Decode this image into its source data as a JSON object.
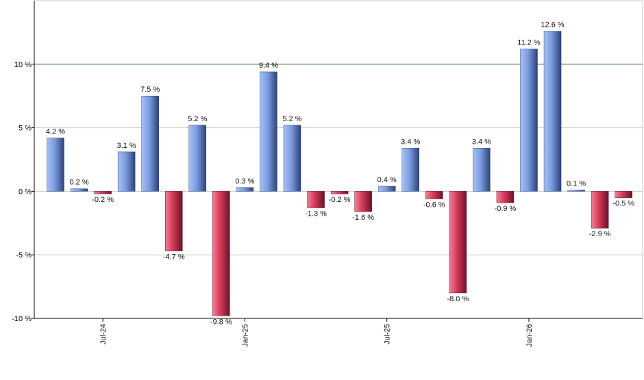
{
  "chart_data": {
    "type": "bar",
    "title": "",
    "xlabel": "",
    "ylabel": "",
    "ylim": [
      -10,
      15
    ],
    "grid": true,
    "y_ticks": [
      {
        "value": 10,
        "label": "10 %"
      },
      {
        "value": 5,
        "label": "5 %"
      },
      {
        "value": 0,
        "label": "0 %"
      },
      {
        "value": -5,
        "label": "-5 %"
      },
      {
        "value": -10,
        "label": "-10 %"
      }
    ],
    "x_ticks": [
      {
        "index": 2,
        "label": "Jul-24"
      },
      {
        "index": 8,
        "label": "Jan-25"
      },
      {
        "index": 14,
        "label": "Jul-25"
      },
      {
        "index": 20,
        "label": "Jan-26"
      }
    ],
    "reference_line": {
      "value": 10,
      "color": "#2e7d32"
    },
    "colors": {
      "positive": "#6f8fd8",
      "negative": "#c8304f",
      "grid": "#c8c8c8",
      "axis": "#000000"
    },
    "values": [
      4.2,
      0.2,
      -0.2,
      3.1,
      7.5,
      -4.7,
      5.2,
      -9.8,
      0.3,
      9.4,
      5.2,
      -1.3,
      -0.2,
      -1.6,
      0.4,
      3.4,
      -0.6,
      -8.0,
      3.4,
      -0.9,
      11.2,
      12.6,
      0.1,
      -2.9,
      -0.5
    ],
    "labels": [
      "4.2 %",
      "0.2 %",
      "-0.2 %",
      "3.1 %",
      "7.5 %",
      "-4.7 %",
      "5.2 %",
      "-9.8 %",
      "0.3 %",
      "9.4 %",
      "5.2 %",
      "-1.3 %",
      "-0.2 %",
      "-1.6 %",
      "0.4 %",
      "3.4 %",
      "-0.6 %",
      "-8.0 %",
      "3.4 %",
      "-0.9 %",
      "11.2 %",
      "12.6 %",
      "0.1 %",
      "-2.9 %",
      "-0.5 %"
    ]
  }
}
